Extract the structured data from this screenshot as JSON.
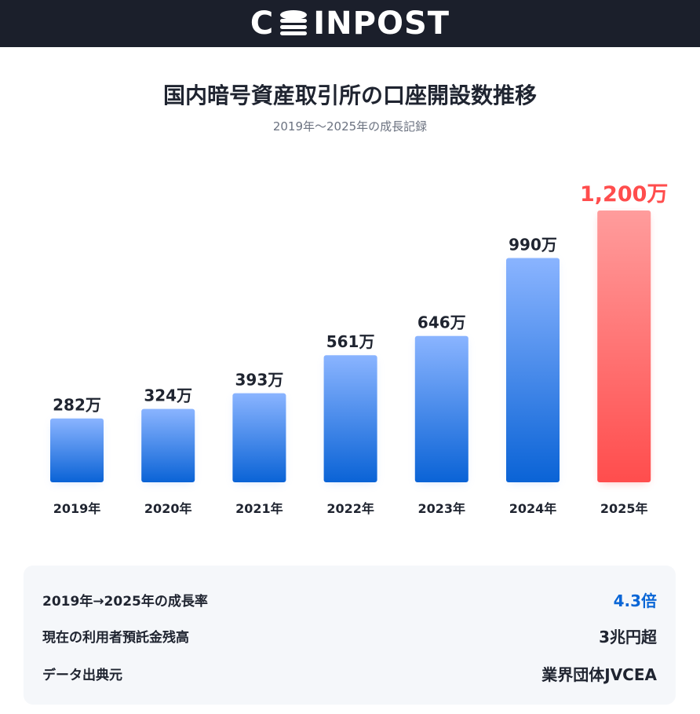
{
  "header": {
    "logo_left": "C",
    "logo_right": "INPOST",
    "logo_full": "COINPOST"
  },
  "title": "国内暗号資産取引所の口座開設数推移",
  "subtitle": "2019年〜2025年の成長記録",
  "chart_data": {
    "type": "bar",
    "categories": [
      "2019年",
      "2020年",
      "2021年",
      "2022年",
      "2023年",
      "2024年",
      "2025年"
    ],
    "values": [
      282,
      324,
      393,
      561,
      646,
      990,
      1200
    ],
    "value_labels": [
      "282万",
      "324万",
      "393万",
      "561万",
      "646万",
      "990万",
      "1,200万"
    ],
    "unit": "万",
    "highlight_index": 6,
    "colors": {
      "bar_top": "#8ab4ff",
      "bar_bottom": "#0a63d6",
      "highlight_top": "#ff9c9c",
      "highlight_bottom": "#ff4d4d",
      "highlight_label": "#ff4d4d",
      "label": "#1f2430"
    },
    "title": "国内暗号資産取引所の口座開設数推移",
    "xlabel": "",
    "ylabel": "",
    "grid": false,
    "legend": "none"
  },
  "summary": {
    "rows": [
      {
        "label": "2019年→2025年の成長率",
        "value": "4.3倍",
        "accent": true
      },
      {
        "label": "現在の利用者預託金残高",
        "value": "3兆円超",
        "accent": false
      },
      {
        "label": "データ出典元",
        "value": "業界団体JVCEA",
        "accent": false
      }
    ],
    "accent_color": "#0a66d6"
  }
}
